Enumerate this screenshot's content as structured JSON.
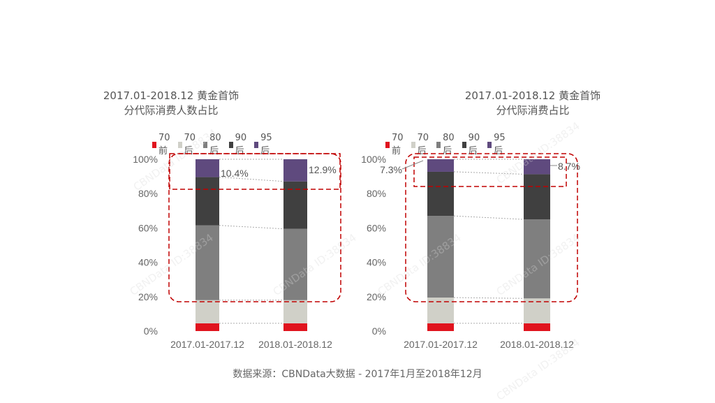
{
  "colors": {
    "pre70": "#e0141e",
    "post70": "#d0d0c8",
    "post80": "#7f7f7f",
    "post90": "#404040",
    "post95": "#5f4a7e",
    "highlight": "#c00000"
  },
  "legend": [
    "70前",
    "70后",
    "80后",
    "90后",
    "95后"
  ],
  "source": "数据来源：CBNData大数据 - 2017年1月至2018年12月",
  "watermark": "CBNData ID:38834",
  "chart_data": [
    {
      "type": "bar",
      "stacked": true,
      "title": "2017.01-2018.12 黄金首饰",
      "subtitle": "分代际消费人数占比",
      "categories": [
        "2017.01-2017.12",
        "2018.01-2018.12"
      ],
      "yticks": [
        "0%",
        "20%",
        "40%",
        "60%",
        "80%",
        "100%"
      ],
      "ylim": [
        0,
        100
      ],
      "series": [
        {
          "name": "70前",
          "values": [
            4.5,
            4.5
          ]
        },
        {
          "name": "70后",
          "values": [
            13.5,
            13.5
          ]
        },
        {
          "name": "80后",
          "values": [
            43.5,
            41.5
          ]
        },
        {
          "name": "90后",
          "values": [
            28.1,
            27.6
          ]
        },
        {
          "name": "95后",
          "values": [
            10.4,
            12.9
          ]
        }
      ],
      "annotation_labels": [
        "10.4%",
        "12.9%"
      ]
    },
    {
      "type": "bar",
      "stacked": true,
      "title": "2017.01-2018.12 黄金首饰",
      "subtitle": "分代际消费占比",
      "categories": [
        "2017.01-2017.12",
        "2018.01-2018.12"
      ],
      "yticks": [
        "0%",
        "20%",
        "40%",
        "60%",
        "80%",
        "100%"
      ],
      "ylim": [
        0,
        100
      ],
      "series": [
        {
          "name": "70前",
          "values": [
            4.5,
            4.5
          ]
        },
        {
          "name": "70后",
          "values": [
            15.0,
            14.5
          ]
        },
        {
          "name": "80后",
          "values": [
            47.5,
            46.0
          ]
        },
        {
          "name": "90后",
          "values": [
            25.7,
            26.3
          ]
        },
        {
          "name": "95后",
          "values": [
            7.3,
            8.7
          ]
        }
      ],
      "annotation_labels": [
        "7.3%",
        "8.7%"
      ]
    }
  ]
}
